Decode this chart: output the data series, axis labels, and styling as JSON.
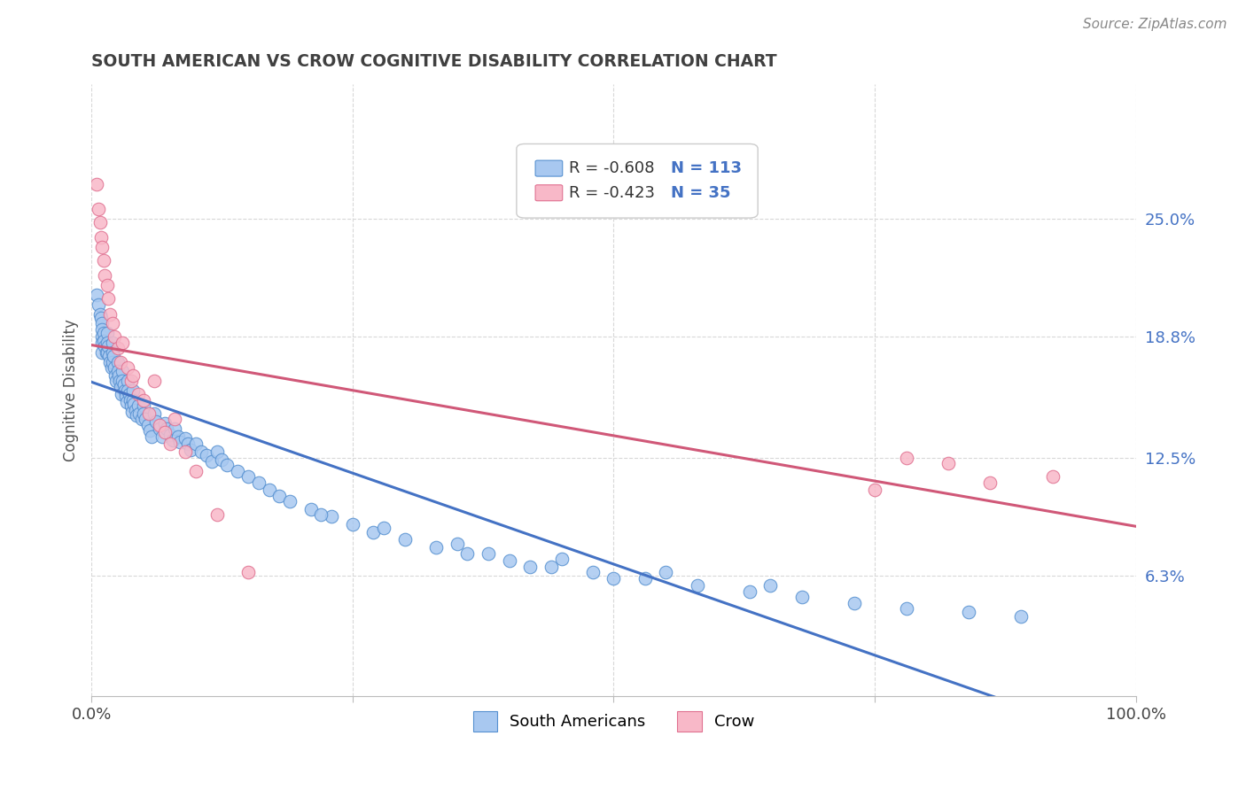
{
  "title": "SOUTH AMERICAN VS CROW COGNITIVE DISABILITY CORRELATION CHART",
  "source": "Source: ZipAtlas.com",
  "ylabel": "Cognitive Disability",
  "xlim": [
    0,
    1.0
  ],
  "ylim": [
    0,
    0.32
  ],
  "yticks": [
    0.063,
    0.125,
    0.188,
    0.25
  ],
  "ytick_labels": [
    "6.3%",
    "12.5%",
    "18.8%",
    "25.0%"
  ],
  "xticks": [
    0.0,
    0.25,
    0.5,
    0.75,
    1.0
  ],
  "xtick_labels": [
    "0.0%",
    "",
    "",
    "",
    "100.0%"
  ],
  "legend_r1": "R = -0.608",
  "legend_n1": "N = 113",
  "legend_r2": "R = -0.423",
  "legend_n2": "N = 35",
  "color_blue_face": "#A8C8F0",
  "color_pink_face": "#F8B8C8",
  "color_blue_edge": "#5590D0",
  "color_pink_edge": "#E07090",
  "color_blue_line": "#4472C4",
  "color_pink_line": "#D05878",
  "color_blue_text": "#4472C4",
  "color_title": "#404040",
  "background": "#FFFFFF",
  "grid_color": "#D8D8D8",
  "south_american_x": [
    0.005,
    0.007,
    0.008,
    0.009,
    0.01,
    0.01,
    0.01,
    0.01,
    0.01,
    0.012,
    0.012,
    0.013,
    0.014,
    0.015,
    0.015,
    0.015,
    0.016,
    0.017,
    0.018,
    0.019,
    0.02,
    0.02,
    0.02,
    0.021,
    0.022,
    0.023,
    0.024,
    0.025,
    0.025,
    0.026,
    0.027,
    0.028,
    0.029,
    0.03,
    0.03,
    0.031,
    0.032,
    0.033,
    0.034,
    0.035,
    0.035,
    0.036,
    0.037,
    0.038,
    0.039,
    0.04,
    0.04,
    0.041,
    0.042,
    0.043,
    0.045,
    0.046,
    0.048,
    0.05,
    0.05,
    0.052,
    0.054,
    0.056,
    0.058,
    0.06,
    0.062,
    0.065,
    0.068,
    0.07,
    0.072,
    0.075,
    0.078,
    0.08,
    0.083,
    0.085,
    0.09,
    0.092,
    0.095,
    0.1,
    0.105,
    0.11,
    0.115,
    0.12,
    0.125,
    0.13,
    0.14,
    0.15,
    0.16,
    0.17,
    0.18,
    0.19,
    0.21,
    0.23,
    0.25,
    0.27,
    0.3,
    0.33,
    0.36,
    0.4,
    0.44,
    0.48,
    0.53,
    0.58,
    0.63,
    0.68,
    0.73,
    0.78,
    0.84,
    0.89,
    0.22,
    0.28,
    0.35,
    0.45,
    0.55,
    0.65,
    0.38,
    0.42,
    0.5
  ],
  "south_american_y": [
    0.21,
    0.205,
    0.2,
    0.198,
    0.195,
    0.192,
    0.188,
    0.185,
    0.18,
    0.19,
    0.186,
    0.183,
    0.18,
    0.19,
    0.185,
    0.18,
    0.183,
    0.178,
    0.175,
    0.172,
    0.185,
    0.18,
    0.175,
    0.178,
    0.172,
    0.168,
    0.165,
    0.175,
    0.17,
    0.168,
    0.165,
    0.162,
    0.158,
    0.17,
    0.165,
    0.163,
    0.16,
    0.157,
    0.154,
    0.165,
    0.16,
    0.158,
    0.155,
    0.152,
    0.149,
    0.16,
    0.155,
    0.153,
    0.15,
    0.147,
    0.152,
    0.148,
    0.145,
    0.152,
    0.148,
    0.145,
    0.142,
    0.139,
    0.136,
    0.148,
    0.144,
    0.14,
    0.136,
    0.143,
    0.14,
    0.137,
    0.134,
    0.14,
    0.136,
    0.133,
    0.135,
    0.132,
    0.129,
    0.132,
    0.128,
    0.126,
    0.123,
    0.128,
    0.124,
    0.121,
    0.118,
    0.115,
    0.112,
    0.108,
    0.105,
    0.102,
    0.098,
    0.094,
    0.09,
    0.086,
    0.082,
    0.078,
    0.075,
    0.071,
    0.068,
    0.065,
    0.062,
    0.058,
    0.055,
    0.052,
    0.049,
    0.046,
    0.044,
    0.042,
    0.095,
    0.088,
    0.08,
    0.072,
    0.065,
    0.058,
    0.075,
    0.068,
    0.062
  ],
  "crow_x": [
    0.005,
    0.007,
    0.008,
    0.009,
    0.01,
    0.012,
    0.013,
    0.015,
    0.016,
    0.018,
    0.02,
    0.022,
    0.025,
    0.028,
    0.03,
    0.035,
    0.038,
    0.04,
    0.045,
    0.05,
    0.055,
    0.06,
    0.065,
    0.07,
    0.075,
    0.08,
    0.09,
    0.1,
    0.12,
    0.15,
    0.75,
    0.78,
    0.82,
    0.86,
    0.92
  ],
  "crow_y": [
    0.268,
    0.255,
    0.248,
    0.24,
    0.235,
    0.228,
    0.22,
    0.215,
    0.208,
    0.2,
    0.195,
    0.188,
    0.182,
    0.175,
    0.185,
    0.172,
    0.165,
    0.168,
    0.158,
    0.155,
    0.148,
    0.165,
    0.142,
    0.138,
    0.132,
    0.145,
    0.128,
    0.118,
    0.095,
    0.065,
    0.108,
    0.125,
    0.122,
    0.112,
    0.115
  ]
}
